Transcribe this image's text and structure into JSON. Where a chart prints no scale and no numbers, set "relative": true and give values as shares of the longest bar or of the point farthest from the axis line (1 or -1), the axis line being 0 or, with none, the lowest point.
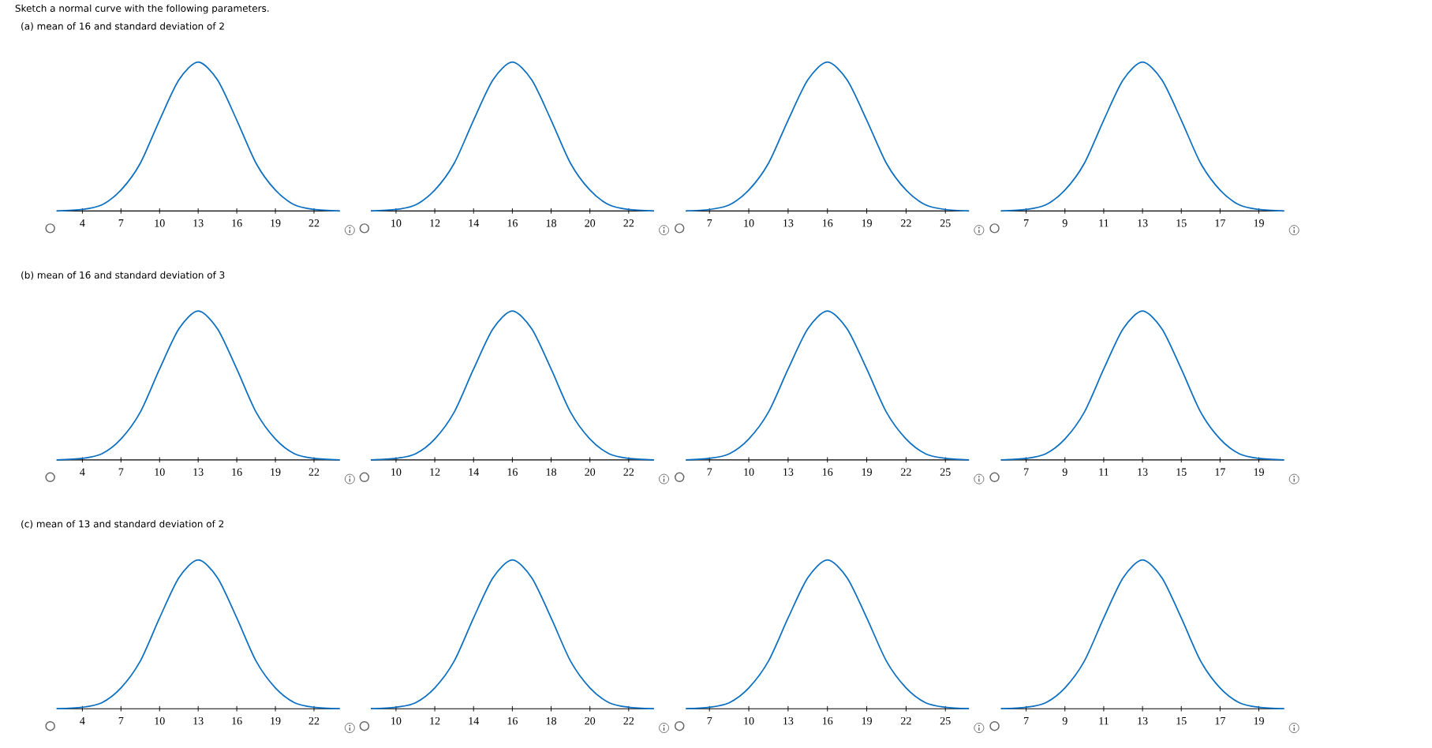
{
  "chart_data": [
    {
      "type": "line",
      "title": "(a) mean of 16 and standard deviation of 2",
      "annotations": [
        "Sketch a normal curve with the following parameters."
      ],
      "relative": true,
      "xlim": [
        2,
        24
      ],
      "xticks": [
        4,
        7,
        10,
        13,
        16,
        19,
        22
      ],
      "series": [
        {
          "color": "#0a6fc2",
          "x": [
            2,
            4,
            5.5,
            7,
            8.5,
            10,
            11.5,
            13,
            14.5,
            16,
            17.5,
            19,
            20.5,
            22,
            24
          ],
          "values": [
            0,
            0.01,
            0.04,
            0.14,
            0.32,
            0.61,
            0.88,
            1,
            0.88,
            0.61,
            0.32,
            0.14,
            0.04,
            0.01,
            0
          ]
        }
      ]
    },
    {
      "type": "line",
      "relative": true,
      "xlim": [
        8.7,
        23.3
      ],
      "xticks": [
        10,
        12,
        14,
        16,
        18,
        20,
        22
      ],
      "series": [
        {
          "color": "#0a6fc2",
          "x": [
            8.7,
            10,
            11,
            12,
            13,
            14,
            15,
            16,
            17,
            18,
            19,
            20,
            21,
            22,
            23.3
          ],
          "values": [
            0,
            0.01,
            0.04,
            0.14,
            0.32,
            0.61,
            0.88,
            1,
            0.88,
            0.61,
            0.32,
            0.14,
            0.04,
            0.01,
            0
          ]
        }
      ]
    },
    {
      "type": "line",
      "relative": true,
      "xlim": [
        5.2,
        26.8
      ],
      "xticks": [
        7,
        10,
        13,
        16,
        19,
        22,
        25
      ],
      "series": [
        {
          "color": "#0a6fc2",
          "x": [
            5.2,
            7,
            8.5,
            10,
            11.5,
            13,
            14.5,
            16,
            17.5,
            19,
            20.5,
            22,
            23.5,
            25,
            26.8
          ],
          "values": [
            0,
            0.01,
            0.04,
            0.14,
            0.32,
            0.61,
            0.88,
            1,
            0.88,
            0.61,
            0.32,
            0.14,
            0.04,
            0.01,
            0
          ]
        }
      ]
    },
    {
      "type": "line",
      "relative": true,
      "xlim": [
        5.7,
        20.3
      ],
      "xticks": [
        7,
        9,
        11,
        13,
        15,
        17,
        19
      ],
      "series": [
        {
          "color": "#0a6fc2",
          "x": [
            5.7,
            7,
            8,
            9,
            10,
            11,
            12,
            13,
            14,
            15,
            16,
            17,
            18,
            19,
            20.3
          ],
          "values": [
            0,
            0.01,
            0.04,
            0.14,
            0.32,
            0.61,
            0.88,
            1,
            0.88,
            0.61,
            0.32,
            0.14,
            0.04,
            0.01,
            0
          ]
        }
      ]
    },
    {
      "type": "line",
      "title": "(b) mean of 16 and standard deviation of 3",
      "relative": true,
      "xlim": [
        2,
        24
      ],
      "xticks": [
        4,
        7,
        10,
        13,
        16,
        19,
        22
      ],
      "series": [
        {
          "color": "#0a6fc2",
          "x": [
            2,
            4,
            5.5,
            7,
            8.5,
            10,
            11.5,
            13,
            14.5,
            16,
            17.5,
            19,
            20.5,
            22,
            24
          ],
          "values": [
            0,
            0.01,
            0.04,
            0.14,
            0.32,
            0.61,
            0.88,
            1,
            0.88,
            0.61,
            0.32,
            0.14,
            0.04,
            0.01,
            0
          ]
        }
      ]
    },
    {
      "type": "line",
      "relative": true,
      "xlim": [
        8.7,
        23.3
      ],
      "xticks": [
        10,
        12,
        14,
        16,
        18,
        20,
        22
      ],
      "series": [
        {
          "color": "#0a6fc2",
          "x": [
            8.7,
            10,
            11,
            12,
            13,
            14,
            15,
            16,
            17,
            18,
            19,
            20,
            21,
            22,
            23.3
          ],
          "values": [
            0,
            0.01,
            0.04,
            0.14,
            0.32,
            0.61,
            0.88,
            1,
            0.88,
            0.61,
            0.32,
            0.14,
            0.04,
            0.01,
            0
          ]
        }
      ]
    },
    {
      "type": "line",
      "relative": true,
      "xlim": [
        5.2,
        26.8
      ],
      "xticks": [
        7,
        10,
        13,
        16,
        19,
        22,
        25
      ],
      "series": [
        {
          "color": "#0a6fc2",
          "x": [
            5.2,
            7,
            8.5,
            10,
            11.5,
            13,
            14.5,
            16,
            17.5,
            19,
            20.5,
            22,
            23.5,
            25,
            26.8
          ],
          "values": [
            0,
            0.01,
            0.04,
            0.14,
            0.32,
            0.61,
            0.88,
            1,
            0.88,
            0.61,
            0.32,
            0.14,
            0.04,
            0.01,
            0
          ]
        }
      ]
    },
    {
      "type": "line",
      "relative": true,
      "xlim": [
        5.7,
        20.3
      ],
      "xticks": [
        7,
        9,
        11,
        13,
        15,
        17,
        19
      ],
      "series": [
        {
          "color": "#0a6fc2",
          "x": [
            5.7,
            7,
            8,
            9,
            10,
            11,
            12,
            13,
            14,
            15,
            16,
            17,
            18,
            19,
            20.3
          ],
          "values": [
            0,
            0.01,
            0.04,
            0.14,
            0.32,
            0.61,
            0.88,
            1,
            0.88,
            0.61,
            0.32,
            0.14,
            0.04,
            0.01,
            0
          ]
        }
      ]
    },
    {
      "type": "line",
      "title": "(c) mean of 13 and standard deviation of 2",
      "relative": true,
      "xlim": [
        2,
        24
      ],
      "xticks": [
        4,
        7,
        10,
        13,
        16,
        19,
        22
      ],
      "series": [
        {
          "color": "#0a6fc2",
          "x": [
            2,
            4,
            5.5,
            7,
            8.5,
            10,
            11.5,
            13,
            14.5,
            16,
            17.5,
            19,
            20.5,
            22,
            24
          ],
          "values": [
            0,
            0.01,
            0.04,
            0.14,
            0.32,
            0.61,
            0.88,
            1,
            0.88,
            0.61,
            0.32,
            0.14,
            0.04,
            0.01,
            0
          ]
        }
      ]
    },
    {
      "type": "line",
      "relative": true,
      "xlim": [
        8.7,
        23.3
      ],
      "xticks": [
        10,
        12,
        14,
        16,
        18,
        20,
        22
      ],
      "series": [
        {
          "color": "#0a6fc2",
          "x": [
            8.7,
            10,
            11,
            12,
            13,
            14,
            15,
            16,
            17,
            18,
            19,
            20,
            21,
            22,
            23.3
          ],
          "values": [
            0,
            0.01,
            0.04,
            0.14,
            0.32,
            0.61,
            0.88,
            1,
            0.88,
            0.61,
            0.32,
            0.14,
            0.04,
            0.01,
            0
          ]
        }
      ]
    },
    {
      "type": "line",
      "relative": true,
      "xlim": [
        5.2,
        26.8
      ],
      "xticks": [
        7,
        10,
        13,
        16,
        19,
        22,
        25
      ],
      "series": [
        {
          "color": "#0a6fc2",
          "x": [
            5.2,
            7,
            8.5,
            10,
            11.5,
            13,
            14.5,
            16,
            17.5,
            19,
            20.5,
            22,
            23.5,
            25,
            26.8
          ],
          "values": [
            0,
            0.01,
            0.04,
            0.14,
            0.32,
            0.61,
            0.88,
            1,
            0.88,
            0.61,
            0.32,
            0.14,
            0.04,
            0.01,
            0
          ]
        }
      ]
    },
    {
      "type": "line",
      "relative": true,
      "xlim": [
        5.7,
        20.3
      ],
      "xticks": [
        7,
        9,
        11,
        13,
        15,
        17,
        19
      ],
      "series": [
        {
          "color": "#0a6fc2",
          "x": [
            5.7,
            7,
            8,
            9,
            10,
            11,
            12,
            13,
            14,
            15,
            16,
            17,
            18,
            19,
            20.3
          ],
          "values": [
            0,
            0.01,
            0.04,
            0.14,
            0.32,
            0.61,
            0.88,
            1,
            0.88,
            0.61,
            0.32,
            0.14,
            0.04,
            0.01,
            0
          ]
        }
      ]
    }
  ]
}
